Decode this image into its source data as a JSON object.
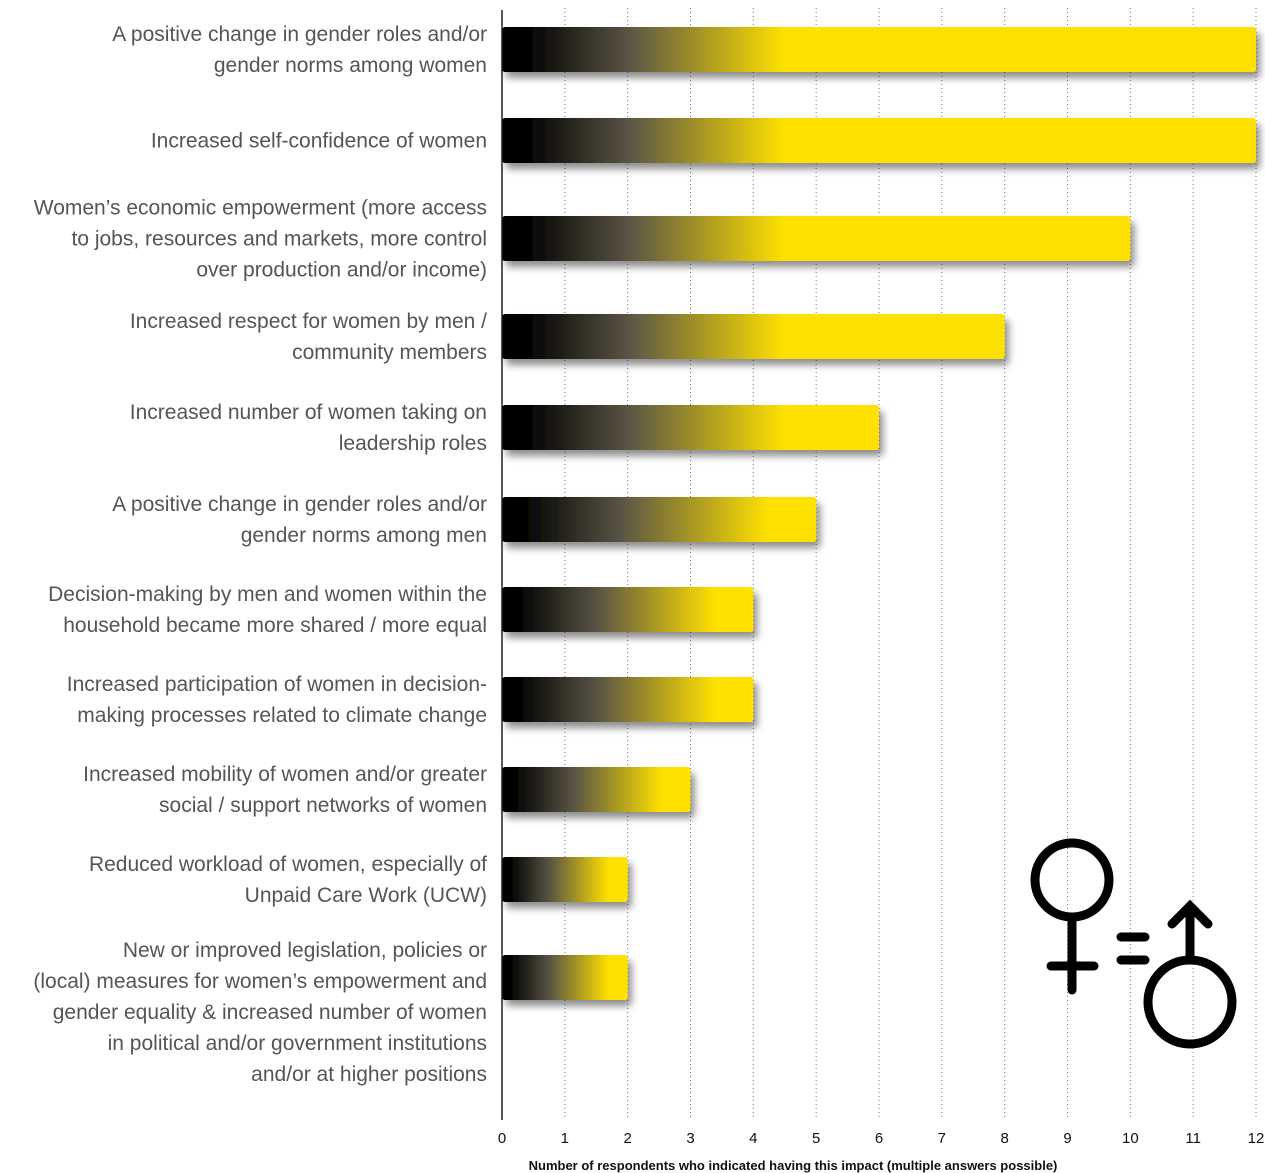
{
  "chart_data": {
    "type": "bar",
    "orientation": "horizontal",
    "categories": [
      [
        "A positive change in gender roles and/or",
        "gender norms among women"
      ],
      [
        "Increased self-confidence of women"
      ],
      [
        "Women’s economic empowerment (more access",
        "to jobs, resources and markets, more control",
        "over production and/or income)"
      ],
      [
        "Increased respect for women by men /",
        "community members"
      ],
      [
        "Increased number of women taking on",
        "leadership roles"
      ],
      [
        "A positive change in gender roles and/or",
        "gender norms among men"
      ],
      [
        "Decision-making by men and women within the",
        "household became more shared / more equal"
      ],
      [
        "Increased participation of women in decision-",
        "making processes related to climate change"
      ],
      [
        "Increased mobility of women and/or greater",
        "social / support networks of women"
      ],
      [
        "Reduced workload of women, especially of",
        "Unpaid Care Work (UCW)"
      ],
      [
        "New or improved legislation, policies or",
        "(local) measures for women’s empowerment and",
        "gender equality & increased number of women",
        "in political and/or government institutions",
        "and/or at higher positions"
      ]
    ],
    "values": [
      12,
      12,
      10,
      8,
      6,
      5,
      4,
      4,
      3,
      2,
      2
    ],
    "xlim": [
      0,
      12
    ],
    "xticks": [
      "0",
      "1",
      "2",
      "3",
      "4",
      "5",
      "6",
      "7",
      "8",
      "9",
      "10",
      "11",
      "12"
    ],
    "xlabel": "Number of respondents who indicated having this impact (multiple answers possible)",
    "ylabel": "",
    "grid": "vertical dotted",
    "colors": {
      "bar": "#ffe100",
      "bar_start": "#000000",
      "text": "#555555",
      "icon": "#000000"
    }
  },
  "icon": {
    "name": "gender-equality-icon"
  }
}
